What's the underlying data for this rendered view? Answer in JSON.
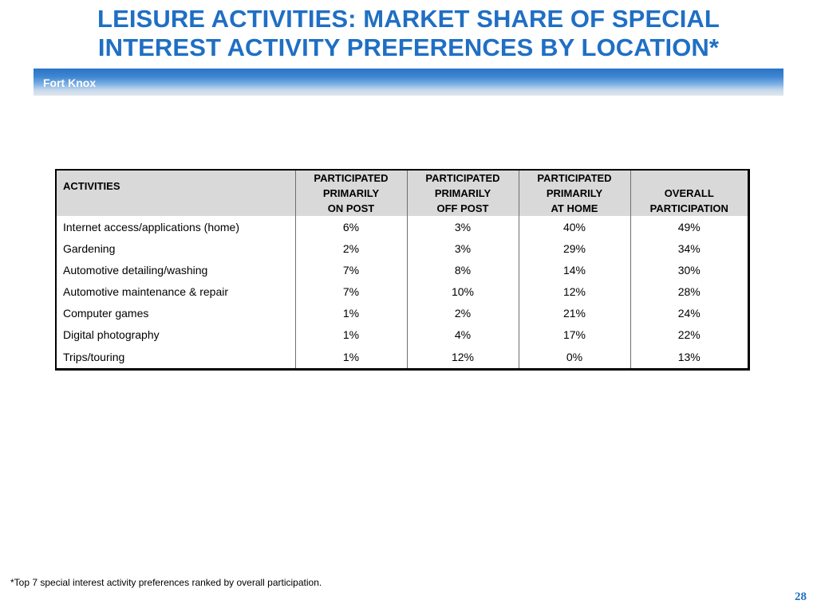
{
  "title": {
    "line1": "LEISURE ACTIVITIES: MARKET SHARE OF SPECIAL",
    "line2": "INTEREST ACTIVITY PREFERENCES BY LOCATION*"
  },
  "banner": {
    "location": "Fort Knox"
  },
  "table": {
    "headers": [
      [
        "ACTIVITIES"
      ],
      [
        "PARTICIPATED",
        "PRIMARILY",
        "ON POST"
      ],
      [
        "PARTICIPATED",
        "PRIMARILY",
        "OFF POST"
      ],
      [
        "PARTICIPATED",
        "PRIMARILY",
        "AT HOME"
      ],
      [
        "OVERALL",
        "PARTICIPATION"
      ]
    ],
    "rows": [
      [
        "Internet access/applications (home)",
        "6%",
        "3%",
        "40%",
        "49%"
      ],
      [
        "Gardening",
        "2%",
        "3%",
        "29%",
        "34%"
      ],
      [
        "Automotive detailing/washing",
        "7%",
        "8%",
        "14%",
        "30%"
      ],
      [
        "Automotive maintenance & repair",
        "7%",
        "10%",
        "12%",
        "28%"
      ],
      [
        "Computer games",
        "1%",
        "2%",
        "21%",
        "24%"
      ],
      [
        "Digital photography",
        "1%",
        "4%",
        "17%",
        "22%"
      ],
      [
        "Trips/touring",
        "1%",
        "12%",
        "0%",
        "13%"
      ]
    ]
  },
  "footnote": "*Top 7 special interest activity preferences ranked by overall participation.",
  "page_number": "28",
  "colors": {
    "title_blue": "#1f6fc4",
    "banner_blue": "#2a73c6",
    "header_gray": "#d9d9d9"
  }
}
